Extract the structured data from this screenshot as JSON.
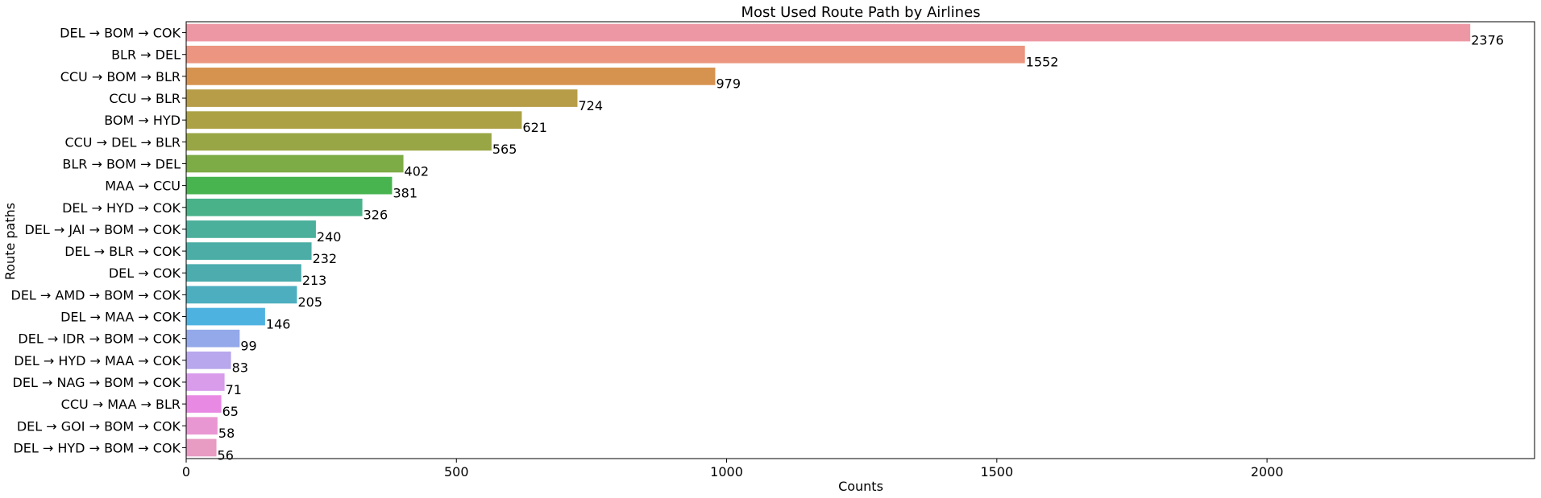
{
  "chart_data": {
    "type": "bar",
    "orientation": "horizontal",
    "title": "Most Used Route Path by Airlines",
    "xlabel": "Counts",
    "ylabel": "Route paths",
    "xlim": [
      0,
      2495
    ],
    "xticks": [
      0,
      500,
      1000,
      1500,
      2000
    ],
    "grid": false,
    "categories": [
      "DEL → BOM → COK",
      "BLR → DEL",
      "CCU → BOM → BLR",
      "CCU → BLR",
      "BOM → HYD",
      "CCU → DEL → BLR",
      "BLR → BOM → DEL",
      "MAA → CCU",
      "DEL → HYD → COK",
      "DEL → JAI → BOM → COK",
      "DEL → BLR → COK",
      "DEL → COK",
      "DEL → AMD → BOM → COK",
      "DEL → MAA → COK",
      "DEL → IDR → BOM → COK",
      "DEL → HYD → MAA → COK",
      "DEL → NAG → BOM → COK",
      "CCU → MAA → BLR",
      "DEL → GOI → BOM → COK",
      "DEL → HYD → BOM → COK"
    ],
    "values": [
      2376,
      1552,
      979,
      724,
      621,
      565,
      402,
      381,
      326,
      240,
      232,
      213,
      205,
      146,
      99,
      83,
      71,
      65,
      58,
      56
    ],
    "colors": [
      "#ee97a4",
      "#ec9580",
      "#d6934f",
      "#b89d48",
      "#aca145",
      "#99a645",
      "#7dab45",
      "#48b450",
      "#49b289",
      "#4aaf9b",
      "#4bada5",
      "#4cacae",
      "#4daebf",
      "#4eb2e0",
      "#94a9ea",
      "#b8a7ec",
      "#d89ceb",
      "#e88ae4",
      "#e997d2",
      "#e89bc3"
    ]
  }
}
